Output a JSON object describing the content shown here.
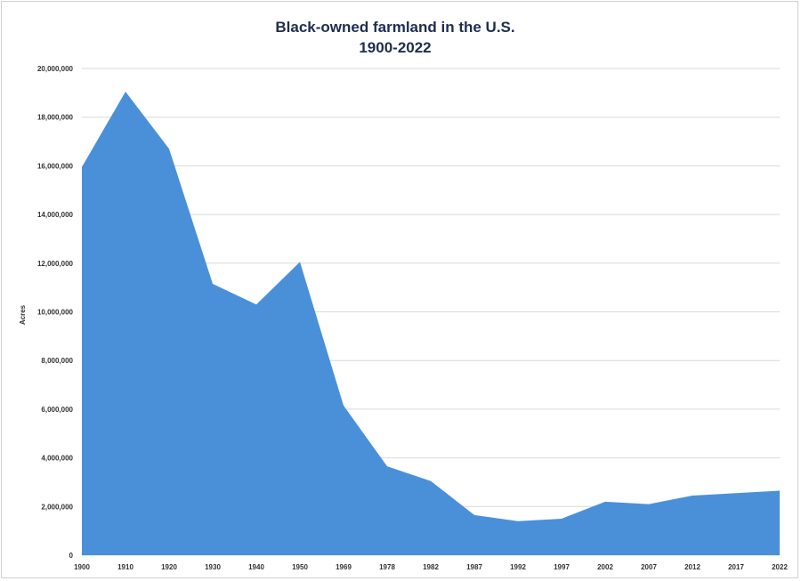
{
  "chart_data": {
    "type": "area",
    "title_line1": "Black-owned farmland in the U.S.",
    "title_line2": "1900-2022",
    "ylabel": "Acres",
    "xlabel": "",
    "ylim": [
      0,
      20000000
    ],
    "yticks": [
      0,
      2000000,
      4000000,
      6000000,
      8000000,
      10000000,
      12000000,
      14000000,
      16000000,
      18000000,
      20000000
    ],
    "ytick_labels": [
      "0",
      "2,000,000",
      "4,000,000",
      "6,000,000",
      "8,000,000",
      "10,000,000",
      "12,000,000",
      "14,000,000",
      "16,000,000",
      "18,000,000",
      "20,000,000"
    ],
    "categories": [
      "1900",
      "1910",
      "1920",
      "1930",
      "1940",
      "1950",
      "1969",
      "1978",
      "1982",
      "1987",
      "1992",
      "1997",
      "2002",
      "2007",
      "2012",
      "2017",
      "2022"
    ],
    "values": [
      15950000,
      19050000,
      16700000,
      11150000,
      10300000,
      12050000,
      6150000,
      3650000,
      3050000,
      1650000,
      1400000,
      1500000,
      2200000,
      2100000,
      2450000,
      2550000,
      2650000
    ],
    "fill_color": "#4a90d9",
    "grid": true,
    "legend": "none"
  }
}
